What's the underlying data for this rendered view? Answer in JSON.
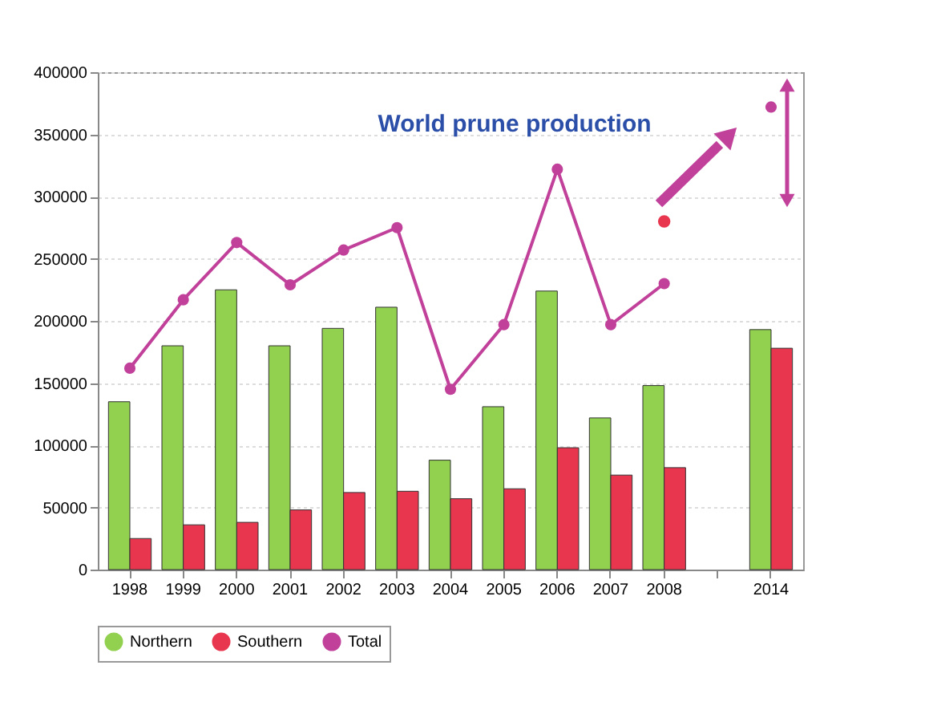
{
  "chart_data": {
    "type": "bar",
    "title": "World prune production",
    "categories": [
      "1998",
      "1999",
      "2000",
      "2001",
      "2002",
      "2003",
      "2004",
      "2005",
      "2006",
      "2007",
      "2008",
      null,
      "2014"
    ],
    "series": [
      {
        "name": "Northern",
        "color": "#92d050",
        "values": [
          135000,
          180000,
          225000,
          180000,
          194000,
          211000,
          88000,
          131000,
          224000,
          122000,
          148000,
          null,
          193000
        ]
      },
      {
        "name": "Southern",
        "color": "#e8364f",
        "values": [
          25000,
          36000,
          38000,
          48000,
          62000,
          63000,
          57000,
          65000,
          98000,
          76000,
          82000,
          null,
          178000
        ]
      },
      {
        "name": "Total",
        "type": "line",
        "color": "#c0409a",
        "marker": "circle",
        "values": [
          162000,
          217000,
          263000,
          229000,
          257000,
          275000,
          145000,
          197000,
          322000,
          197000,
          230000,
          null,
          372000
        ]
      },
      {
        "type": "scatter",
        "color": "#e8364f",
        "marker": "circle",
        "values": [
          null,
          null,
          null,
          null,
          null,
          null,
          null,
          null,
          null,
          null,
          280000,
          null,
          null
        ]
      }
    ],
    "ylim": [
      0,
      400000
    ],
    "yticks": [
      0,
      50000,
      100000,
      150000,
      200000,
      250000,
      300000,
      350000,
      400000
    ],
    "grid": "y",
    "legend": "bottom"
  }
}
